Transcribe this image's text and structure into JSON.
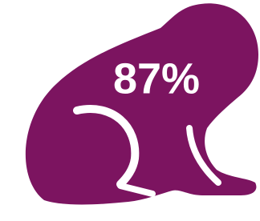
{
  "text": "87%"
}
